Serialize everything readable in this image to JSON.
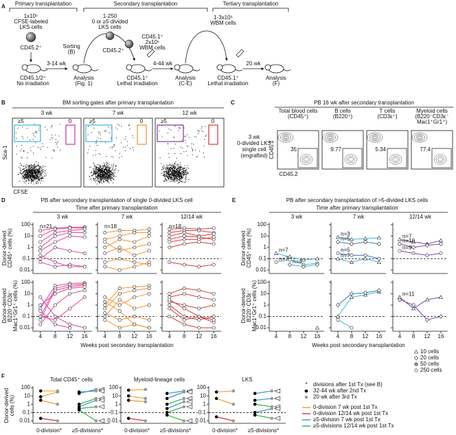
{
  "panel_a": {
    "letter": "A",
    "stages": [
      "Primary transplantation",
      "Secondary transplantation",
      "Tertiary transplantation"
    ],
    "donor_primary": [
      "1x10⁵",
      "CFSE-labeled",
      "LKS cells"
    ],
    "donor_primary_marker": "CD45.2⁺",
    "recipient_primary": [
      "CD45.1/2⁺",
      "No irradiation"
    ],
    "interval_1": "3-14 wk",
    "sorting": [
      "Sorting",
      "(B)"
    ],
    "analysis_1": [
      "Analysis",
      "(Fig. 1)"
    ],
    "donor_secondary": [
      "1-250",
      "0 or ≥5 divided",
      "LKS cells"
    ],
    "donor_secondary_marker": "CD45.2⁺",
    "competitor": [
      "CD45.1⁺",
      "2x10⁵",
      "WBM cells"
    ],
    "recipient_secondary": [
      "CD45.1⁺",
      "Lethal irradiation"
    ],
    "interval_2": "4-44 wk",
    "analysis_2": [
      "Analysis",
      "(C-E)"
    ],
    "donor_tertiary": [
      "1-3x10⁶",
      "WBM cells"
    ],
    "recipient_tertiary": [
      "CD45.1⁺",
      "Lethal irradiation"
    ],
    "interval_3": "20 wk",
    "analysis_3": [
      "Analysis",
      "(F)"
    ]
  },
  "panel_b": {
    "letter": "B",
    "title": "BM sorting gates after primary transplantation",
    "columns": [
      "3 wk",
      "7 wk",
      "12 wk"
    ],
    "gate_high": "≥5",
    "gate_zero": "0",
    "y_label": "Sca-1",
    "x_label": "CFSE",
    "gate_colors": [
      [
        "#3cb8d8",
        "#d0309a"
      ],
      [
        "#3cb8d8",
        "#f0902c"
      ],
      [
        "#7a3a9a",
        "#e03030"
      ]
    ]
  },
  "panel_c": {
    "letter": "C",
    "title": "PB 16 wk after secondary transplantation",
    "columns": [
      [
        "Total blood cells",
        "(CD45⁺)"
      ],
      [
        "B cells",
        "(B220⁺)"
      ],
      [
        "T cells",
        "(CD3ε⁺)"
      ],
      [
        "Myeloid cells",
        "(B220⁻CD3ε⁻",
        "Mac1⁺Gr1⁺)"
      ]
    ],
    "percentages": [
      35,
      9.77,
      5.34,
      77.4
    ],
    "row_label": [
      "3 wk",
      "0-divided LKS",
      "single cell",
      "(engrafted)"
    ],
    "y_label": "CD45.1",
    "x_label": "CD45.2"
  },
  "panel_d": {
    "letter": "D",
    "title": "PB after secondary transplantation of single 0-divided LKS cell",
    "subtitle": "Time after primary transplantation",
    "columns": [
      "3 wk",
      "7 wk",
      "12/14 wk"
    ],
    "y_labels": [
      [
        "Donor-derived",
        "CD45⁺ cells (%)"
      ],
      [
        "Donor-derived",
        "B220⁻CD3ε⁻",
        "Mac1⁺Gr1⁺ cells (%)"
      ]
    ],
    "n_labels": [
      "n=21",
      "n=18",
      "n=18"
    ],
    "colors": [
      "#e4419b",
      "#f39230",
      "#d83a3a"
    ],
    "x": [
      4,
      8,
      12,
      16
    ],
    "xlim": [
      2,
      18
    ],
    "xticks": [
      4,
      8,
      12,
      16
    ],
    "x_label": "Weeks post secondary transplantation",
    "ylim": [
      0.005,
      150
    ],
    "yticks": [
      0.01,
      0.1,
      1,
      10,
      100
    ],
    "threshold": 0.1,
    "plots": [
      [
        [
          [
            30,
            50,
            60,
            60
          ],
          [
            10,
            40,
            50,
            50
          ],
          [
            3,
            20,
            30,
            40
          ],
          [
            1,
            10,
            20,
            20
          ],
          [
            0.5,
            3,
            10,
            8
          ],
          [
            0.1,
            1,
            0.5,
            0.3
          ],
          [
            0.05,
            0.02,
            0.03,
            0.02
          ],
          [
            0.2,
            0.05,
            0.02,
            0.02
          ]
        ],
        [
          [
            20,
            30,
            30,
            40
          ],
          [
            5,
            10,
            20,
            20
          ],
          [
            1,
            5,
            3,
            10
          ],
          [
            3,
            0.5,
            1,
            2
          ],
          [
            0.3,
            1,
            0.2,
            0.5
          ],
          [
            0.05,
            0.1,
            0.05,
            0.03
          ],
          [
            0.02,
            0.01,
            0.02,
            0.05
          ]
        ],
        [
          [
            40,
            50,
            40,
            50
          ],
          [
            20,
            30,
            30,
            20
          ],
          [
            10,
            20,
            10,
            15
          ],
          [
            5,
            10,
            8,
            5
          ],
          [
            3,
            5,
            5,
            8
          ],
          [
            1,
            2,
            3,
            2
          ],
          [
            0.05,
            0.03,
            0.02,
            0.03
          ]
        ]
      ],
      [
        [
          [
            0.5,
            50,
            80,
            90
          ],
          [
            0.1,
            30,
            60,
            70
          ],
          [
            0.05,
            20,
            40,
            60
          ],
          [
            1,
            10,
            30,
            40
          ],
          [
            0.02,
            1,
            10,
            20
          ],
          [
            0.1,
            0.05,
            0.5,
            5
          ],
          [
            5,
            0.1,
            0.02,
            0.01
          ],
          [
            0.3,
            0.02,
            0.01,
            null
          ]
        ],
        [
          [
            1,
            30,
            40,
            50
          ],
          [
            0.5,
            10,
            20,
            30
          ],
          [
            5,
            1,
            5,
            10
          ],
          [
            0.1,
            3,
            0.5,
            1
          ],
          [
            0.2,
            0.05,
            0.1,
            0.05
          ],
          [
            0.05,
            0.01,
            0.02,
            0.01
          ],
          [
            2,
            0.3,
            0.02,
            0.01
          ]
        ],
        [
          [
            10,
            30,
            20,
            10
          ],
          [
            5,
            10,
            5,
            3
          ],
          [
            2,
            1,
            0.5,
            1
          ],
          [
            1,
            0.1,
            0.05,
            0.1
          ],
          [
            0.5,
            0.05,
            0.1,
            0.03
          ],
          [
            0.1,
            0.02,
            0.01,
            0.01
          ],
          [
            3,
            0.5,
            0.1,
            0.05
          ]
        ]
      ]
    ]
  },
  "panel_e": {
    "letter": "E",
    "title": "PB after secondary transplantation of >5-divided LKS cells",
    "subtitle": "Time after primary transplantation",
    "columns": [
      "3 wk",
      "7 wk",
      "12/14 wk"
    ],
    "y_labels": [
      [
        "Donor-derived",
        "CD45⁺ cells (%)"
      ],
      [
        "Donor-derived",
        "B220⁻CD3ε⁻",
        "Mac1⁺Gr1⁺ cells (%)"
      ]
    ],
    "x": [
      4,
      8,
      12,
      16
    ],
    "xlim": [
      2,
      18
    ],
    "xticks": [
      4,
      8,
      12,
      16
    ],
    "x_label": "Weeks post secondary transplantation",
    "ylim": [
      0.005,
      150
    ],
    "yticks": [
      0.01,
      0.1,
      1,
      10,
      100
    ],
    "threshold": 0.1,
    "legend": [
      {
        "label": "10 cells",
        "marker": "triangle"
      },
      {
        "label": "20 cells",
        "marker": "diamond"
      },
      {
        "label": "50 cells",
        "marker": "filled"
      },
      {
        "label": "250 cells",
        "marker": "circle"
      }
    ],
    "plots": [
      [
        [
          {
            "marker": "triangle",
            "color": "#3bb5d8",
            "values": [
              0.3,
              0.15,
              0.08,
              0.1
            ],
            "n_label": "n=7"
          },
          {
            "marker": "circle",
            "color": "#3bb5d8",
            "values": [
              0.05,
              0.08,
              0.03,
              0.04
            ],
            "n_label": "n=7"
          },
          {
            "marker": "diamond",
            "color": "#3bb5d8",
            "values": [
              null,
              0.03,
              0.02,
              0.03
            ],
            "n_label": "n=4"
          }
        ],
        [
          {
            "marker": "triangle",
            "color": "#3bb5d8",
            "values": [
              8,
              5,
              6,
              7
            ],
            "n_label": "n=3"
          },
          {
            "marker": "diamond",
            "color": "#2f7fc1",
            "values": [
              3,
              2,
              3,
              2
            ],
            "n_label": "n=5"
          },
          {
            "marker": "circle",
            "color": "#2f7fc1",
            "values": [
              0.3,
              0.2,
              0.2,
              0.1
            ],
            "n_label": "n=5"
          },
          {
            "marker": "triangle",
            "color": "#3bb5d8",
            "values": [
              0.1,
              0.05,
              0.1,
              0.05
            ],
            "n_label": "n=7"
          }
        ],
        [
          {
            "marker": "triangle",
            "color": "#7b3fa0",
            "values": [
              5,
              3,
              2,
              4
            ],
            "n_label": "n=7"
          },
          {
            "marker": "diamond",
            "color": "#7b3fa0",
            "values": [
              2,
              1,
              1.5,
              2
            ],
            "n_label": "n=10"
          },
          {
            "marker": "circle",
            "color": "#7b3fa0",
            "values": [
              0.5,
              0.3,
              0.2,
              0.3
            ],
            "n_label": "n=9"
          }
        ]
      ],
      [
        [
          {
            "marker": "triangle",
            "color": "#3bb5d8",
            "values": [
              null,
              null,
              null,
              0.01
            ]
          }
        ],
        [
          {
            "marker": "triangle",
            "color": "#3bb5d8",
            "values": [
              0.1,
              5,
              8,
              15
            ]
          },
          {
            "marker": "diamond",
            "color": "#2f7fc1",
            "values": [
              1,
              10,
              12,
              20
            ]
          },
          {
            "marker": "circle",
            "color": "#3bb5d8",
            "values": [
              0.05,
              0.01,
              null,
              null
            ]
          }
        ],
        [
          {
            "marker": "triangle",
            "color": "#7b3fa0",
            "values": [
              5,
              0.5,
              3,
              5
            ],
            "n_label": "n=11"
          },
          {
            "marker": "diamond",
            "color": "#7b3fa0",
            "values": [
              3,
              1,
              0.05,
              0.1
            ]
          }
        ]
      ]
    ]
  },
  "panel_f": {
    "letter": "F",
    "titles": [
      "Total CD45⁺ cells",
      "Myeloid-lineage cells",
      "LKS"
    ],
    "y_label": [
      "Donor-derived",
      "cells (%)"
    ],
    "ylim": [
      0.005,
      150
    ],
    "yticks": [
      0.01,
      0.1,
      1,
      10,
      100
    ],
    "threshold": 0.1,
    "group_labels": [
      "0-division*",
      "≥5-divisions*"
    ],
    "plots": [
      {
        "zero": [
          {
            "color": "#f0a030",
            "values": [
              40,
              40
            ]
          },
          {
            "color": "#f0a030",
            "values": [
              8,
              30
            ]
          },
          {
            "color": "#f0a030",
            "values": [
              3,
              1
            ]
          },
          {
            "color": "#d03030",
            "values": [
              0.02,
              0.01
            ]
          }
        ],
        "five": [
          {
            "color": "#3090c8",
            "values": [
              20,
              60
            ]
          },
          {
            "color": "#3090c8",
            "values": [
              30,
              40
            ]
          },
          {
            "color": "#30b040",
            "values": [
              1,
              5
            ]
          },
          {
            "color": "#3090c8",
            "values": [
              0.5,
              3
            ]
          },
          {
            "color": "#30b040",
            "values": [
              0.3,
              0.5
            ]
          },
          {
            "color": "#30b040",
            "values": [
              0.2,
              0.01
            ]
          }
        ]
      },
      {
        "zero": [
          {
            "color": "#f0a030",
            "values": [
              50,
              60
            ]
          },
          {
            "color": "#f0a030",
            "values": [
              10,
              5
            ]
          },
          {
            "color": "#f0a030",
            "values": [
              3,
              2
            ]
          },
          {
            "color": "#d03030",
            "values": [
              0.02,
              0.01
            ]
          }
        ],
        "five": [
          {
            "color": "#3090c8",
            "values": [
              20,
              40
            ]
          },
          {
            "color": "#3090c8",
            "values": [
              5,
              30
            ]
          },
          {
            "color": "#30b040",
            "values": [
              1,
              5
            ]
          },
          {
            "color": "#3090c8",
            "values": [
              0.3,
              2
            ]
          },
          {
            "color": "#30b040",
            "values": [
              0.1,
              0.5
            ]
          },
          {
            "color": "#30b040",
            "values": [
              0.05,
              0.01
            ]
          }
        ]
      },
      {
        "zero": [
          {
            "color": "#f0a030",
            "values": [
              30,
              40
            ]
          },
          {
            "color": "#f0a030",
            "values": [
              5,
              1
            ]
          },
          {
            "color": "#d03030",
            "values": [
              0.03,
              0.01
            ]
          }
        ],
        "five": [
          {
            "color": "#3090c8",
            "values": [
              20,
              40
            ]
          },
          {
            "color": "#3090c8",
            "values": [
              3,
              5
            ]
          },
          {
            "color": "#30b040",
            "values": [
              1,
              0.5
            ]
          },
          {
            "color": "#3090c8",
            "values": [
              0.1,
              0.3
            ]
          },
          {
            "color": "#30b040",
            "values": [
              0.05,
              0.02
            ]
          }
        ]
      }
    ],
    "legend": {
      "star": "*",
      "star_text": "divisions after 1st Tx (see B)",
      "points": [
        {
          "label": "32-44 wk after 2nd Tx",
          "color": "#000000"
        },
        {
          "label": "20 wk after 3rd Tx",
          "color": "#999999"
        }
      ],
      "lines": [
        {
          "label": "0-division 7 wk post 1st Tx",
          "color": "#f0a030"
        },
        {
          "label": "0-division 12/14 wk post 1st Tx",
          "color": "#d03030"
        },
        {
          "label": "≥5-division 7 wk post 1st Tx",
          "color": "#3090c8"
        },
        {
          "label": "≥5-divisions 12/14 wk post 1st Tx",
          "color": "#30b040"
        }
      ]
    }
  }
}
